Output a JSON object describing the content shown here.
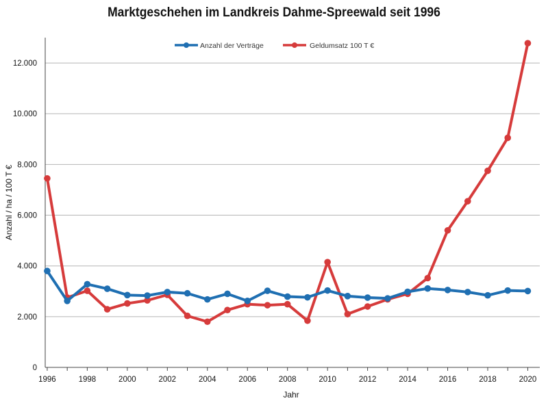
{
  "chart_data": {
    "type": "line",
    "title": "Marktgeschehen im Landkreis Dahme-Spreewald seit 1996",
    "xlabel": "Jahr",
    "ylabel": "Anzahl / ha / 100 T €",
    "x": [
      1996,
      1997,
      1998,
      1999,
      2000,
      2001,
      2002,
      2003,
      2004,
      2005,
      2006,
      2007,
      2008,
      2009,
      2010,
      2011,
      2012,
      2013,
      2014,
      2015,
      2016,
      2017,
      2018,
      2019,
      2020
    ],
    "x_tick_labels": [
      "1996",
      "1998",
      "2000",
      "2002",
      "2004",
      "2006",
      "2008",
      "2010",
      "2012",
      "2014",
      "2016",
      "2018",
      "2020"
    ],
    "y_tick_labels": [
      "0",
      "2.000",
      "4.000",
      "6.000",
      "8.000",
      "10.000",
      "12.000"
    ],
    "y_ticks": [
      0,
      2000,
      4000,
      6000,
      8000,
      10000,
      12000
    ],
    "xlim": [
      1995.9,
      2020.6
    ],
    "ylim": [
      0,
      13000
    ],
    "grid": true,
    "legend_position": "top-center",
    "series": [
      {
        "name": "Anzahl der Verträge",
        "color": "#1f6fb2",
        "values": [
          3800,
          2620,
          3280,
          3100,
          2850,
          2830,
          2970,
          2920,
          2680,
          2900,
          2620,
          3020,
          2790,
          2760,
          3030,
          2810,
          2750,
          2720,
          2980,
          3110,
          3050,
          2970,
          2840,
          3030,
          3010
        ]
      },
      {
        "name": "Geldumsatz 100 T €",
        "color": "#d63b3b",
        "values": [
          7450,
          2750,
          3020,
          2290,
          2520,
          2640,
          2860,
          2030,
          1800,
          2260,
          2490,
          2450,
          2490,
          1840,
          4150,
          2100,
          2400,
          2680,
          2900,
          3520,
          5400,
          6550,
          7750,
          9050,
          12780
        ]
      }
    ]
  }
}
